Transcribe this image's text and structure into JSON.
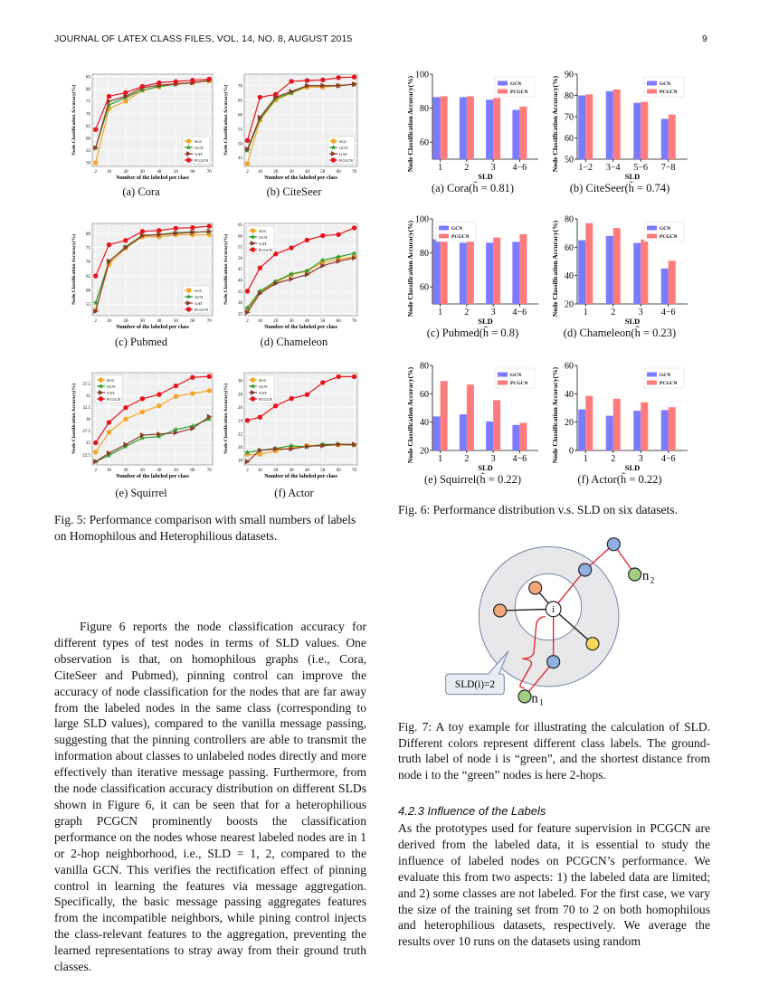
{
  "header": {
    "title": "JOURNAL OF LATEX CLASS FILES, VOL. 14, NO. 8, AUGUST 2015",
    "page": "9"
  },
  "figure5": {
    "caption": "Fig. 5: Performance comparison with small numbers of labels on Homophilous and Heterophilious datasets."
  },
  "figure6": {
    "caption": "Fig. 6: Performance distribution v.s. SLD on six datasets."
  },
  "figure7": {
    "caption": "Fig. 7: A toy example for illustrating the calculation of SLD. Different colors represent different class labels. The ground-truth label of node i is “green”, and the shortest distance from node i to the “green” nodes is here 2-hops.",
    "center_label": "i",
    "n1_label": "n",
    "n1_sub": "1",
    "n2_label": "n",
    "n2_sub": "2",
    "callout": "SLD(i)=2",
    "colors": {
      "orange": "#f4a77a",
      "blue": "#8fb0e0",
      "green": "#9fd07f",
      "yellow": "#f8d85a",
      "ring": "#e8e8ea",
      "edge_red": "#e0242a"
    }
  },
  "body": {
    "left_paragraph": "Figure 6 reports the node classification accuracy for different types of test nodes in terms of SLD values. One observation is that, on homophilous graphs (i.e., Cora, CiteSeer and Pubmed), pinning control can improve the accuracy of node classification for the nodes that are far away from the labeled nodes in the same class (corresponding to large SLD values), compared to the vanilla message passing, suggesting that the pinning controllers are able to transmit the information about classes to unlabeled nodes directly and more effectively than iterative message passing. Furthermore, from the node classification accuracy distribution on different SLDs shown in Figure 6, it can be seen that for a heterophilious graph PCGCN prominently boosts the classification performance on the nodes whose nearest labeled nodes are in 1 or 2-hop neighborhood, i.e., SLD = 1, 2, compared to the vanilla GCN. This verifies the rectification effect of pinning control in learning the features via message aggregation. Specifically, the basic message passing aggregates features from the incompatible neighbors, while pining control injects the class-relevant features to the aggregation, preventing the learned representations to stray away from their ground truth classes.",
    "section_heading": "4.2.3   Influence of the Labels",
    "right_paragraph": "As the prototypes used for feature supervision in PCGCN are derived from the labeled data, it is essential to study the influence of labeled nodes on PCGCN’s performance. We evaluate this from two aspects: 1) the labeled data are limited; and 2) some classes are not labeled. For the first case, we vary the size of the training set from 70 to 2 on both homophilous and heterophilious datasets, respectively. We average the results over 10 runs on the datasets using random"
  },
  "chart_data": [
    {
      "type": "line",
      "caption": "(a) Cora",
      "xlabel": "Number of the labeled per class",
      "ylabel": "Node Classification Accuracy(%)",
      "x": [
        2,
        10,
        20,
        30,
        40,
        50,
        60,
        70
      ],
      "ylim": [
        48.5,
        86
      ],
      "yticks": [
        50,
        55,
        60,
        65,
        70,
        75,
        80,
        85
      ],
      "legend": "bottom-right",
      "grid": true,
      "series": [
        {
          "name": "SGC",
          "color": "#f5a623",
          "marker": "circle",
          "values": [
            50,
            72,
            75,
            79.5,
            80.8,
            82,
            82.5,
            83.3
          ]
        },
        {
          "name": "GCN",
          "color": "#2a9d2a",
          "marker": "star",
          "values": [
            56,
            73.5,
            76.5,
            79.5,
            81,
            82,
            82.5,
            83.5
          ]
        },
        {
          "name": "GAT",
          "color": "#8b3a2a",
          "marker": "triangle",
          "values": [
            56,
            75,
            77,
            80.5,
            81.5,
            82,
            82.5,
            83.5
          ]
        },
        {
          "name": "PCGCN",
          "color": "#e8141c",
          "marker": "circle",
          "values": [
            63.5,
            77,
            78.5,
            81,
            82.5,
            83,
            83.5,
            84
          ]
        }
      ]
    },
    {
      "type": "line",
      "caption": "(b) CiteSeer",
      "xlabel": "Number of the labeled per class",
      "ylabel": "Node Classification Accuracy(%)",
      "x": [
        2,
        10,
        20,
        30,
        40,
        50,
        60,
        70
      ],
      "ylim": [
        42,
        74
      ],
      "yticks": [
        45,
        50,
        55,
        60,
        65,
        70
      ],
      "legend": "bottom-right",
      "grid": true,
      "series": [
        {
          "name": "SGC",
          "color": "#f5a623",
          "marker": "circle",
          "values": [
            43,
            58,
            65,
            67.5,
            69.5,
            69.5,
            70,
            70.5
          ]
        },
        {
          "name": "GCN",
          "color": "#2a9d2a",
          "marker": "star",
          "values": [
            47.5,
            58.5,
            65.5,
            67.5,
            70,
            70,
            70,
            70.5
          ]
        },
        {
          "name": "GAT",
          "color": "#8b3a2a",
          "marker": "triangle",
          "values": [
            48,
            59,
            66,
            68,
            70,
            70,
            70,
            70.5
          ]
        },
        {
          "name": "PCGCN",
          "color": "#e8141c",
          "marker": "circle",
          "values": [
            51,
            66,
            67,
            71.5,
            71.8,
            72,
            72.8,
            73
          ]
        }
      ]
    },
    {
      "type": "line",
      "caption": "(c) Pubmed",
      "xlabel": "Number of the labeled per class",
      "ylabel": "Node Classification Accuracy(%)",
      "x": [
        2,
        10,
        20,
        30,
        40,
        50,
        60,
        70
      ],
      "ylim": [
        51,
        83.5
      ],
      "yticks": [
        55,
        60,
        65,
        70,
        75,
        80
      ],
      "legend": "bottom-right",
      "grid": true,
      "series": [
        {
          "name": "SGC",
          "color": "#f5a623",
          "marker": "circle",
          "values": [
            53,
            69,
            74.8,
            78.8,
            78.8,
            79.5,
            79.5,
            79.5
          ]
        },
        {
          "name": "GCN",
          "color": "#2a9d2a",
          "marker": "star",
          "values": [
            55.5,
            70,
            75.3,
            79.3,
            79.6,
            80.2,
            80.5,
            80.5
          ]
        },
        {
          "name": "GAT",
          "color": "#8b3a2a",
          "marker": "triangle",
          "values": [
            52.5,
            70.2,
            75,
            79.2,
            79.5,
            80,
            80.3,
            80.7
          ]
        },
        {
          "name": "PCGCN",
          "color": "#e8141c",
          "marker": "circle",
          "values": [
            65,
            76,
            77.5,
            80.7,
            81,
            81.8,
            82,
            82.5
          ]
        }
      ]
    },
    {
      "type": "line",
      "caption": "(d) Chameleon",
      "xlabel": "Number of the labeled per class",
      "ylabel": "Node Classification Accuracy(%)",
      "x": [
        2,
        10,
        20,
        30,
        40,
        50,
        60,
        70
      ],
      "ylim": [
        24,
        65.5
      ],
      "yticks": [
        25,
        30,
        35,
        40,
        45,
        50,
        55,
        60,
        65
      ],
      "legend": "top-left",
      "grid": true,
      "series": [
        {
          "name": "SGC",
          "color": "#f5a623",
          "marker": "circle",
          "values": [
            26.5,
            34.5,
            39,
            42.5,
            44,
            48,
            49.5,
            50.5
          ]
        },
        {
          "name": "GCN",
          "color": "#2a9d2a",
          "marker": "star",
          "values": [
            27.5,
            35,
            39.5,
            42.8,
            44.2,
            49,
            50.5,
            52
          ]
        },
        {
          "name": "GAT",
          "color": "#8b3a2a",
          "marker": "triangle",
          "values": [
            25.5,
            34,
            38.5,
            40.5,
            42.5,
            46.5,
            48.5,
            50
          ]
        },
        {
          "name": "PCGCN",
          "color": "#e8141c",
          "marker": "circle",
          "values": [
            35,
            45.5,
            51.8,
            54.5,
            58,
            60,
            60.5,
            63.5
          ]
        }
      ]
    },
    {
      "type": "line",
      "caption": "(e) Squirrel",
      "xlabel": "Number of the labeled per class",
      "ylabel": "Node Classification Accuracy(%)",
      "x": [
        2,
        10,
        20,
        30,
        40,
        50,
        60,
        70
      ],
      "ylim": [
        20.3,
        39.8
      ],
      "yticks": [
        22.5,
        25.0,
        27.5,
        30.0,
        32.5,
        35.0,
        37.5
      ],
      "legend": "top-left",
      "grid": true,
      "series": [
        {
          "name": "SGC",
          "color": "#f5a623",
          "marker": "circle",
          "values": [
            23,
            27.2,
            30,
            31.5,
            32.8,
            34.8,
            35.4,
            36
          ]
        },
        {
          "name": "GCN",
          "color": "#2a9d2a",
          "marker": "star",
          "values": [
            21,
            22.3,
            24.2,
            26,
            26.3,
            27.8,
            28.5,
            30
          ]
        },
        {
          "name": "GAT",
          "color": "#8b3a2a",
          "marker": "triangle",
          "values": [
            21,
            22.8,
            24.6,
            26.6,
            26.8,
            27.1,
            28,
            30.5
          ]
        },
        {
          "name": "PCGCN",
          "color": "#e8141c",
          "marker": "circle",
          "values": [
            25,
            29.3,
            32.4,
            34.3,
            35.2,
            37,
            38.8,
            39
          ]
        }
      ]
    },
    {
      "type": "line",
      "caption": "(f) Actor",
      "xlabel": "Number of the labeled per class",
      "ylabel": "Node Classification Accuracy(%)",
      "x": [
        2,
        10,
        20,
        30,
        40,
        50,
        60,
        70
      ],
      "ylim": [
        17.3,
        31.2
      ],
      "yticks": [
        18,
        20,
        22,
        24,
        26,
        28,
        30
      ],
      "legend": "top-left",
      "grid": true,
      "series": [
        {
          "name": "SGC",
          "color": "#f5a623",
          "marker": "circle",
          "values": [
            18.9,
            18.9,
            19.4,
            19.9,
            20.2,
            20.3,
            20.3,
            20.3
          ]
        },
        {
          "name": "GCN",
          "color": "#2a9d2a",
          "marker": "star",
          "values": [
            19.2,
            19.5,
            19.8,
            20.2,
            20,
            20.4,
            20.4,
            20.3
          ]
        },
        {
          "name": "GAT",
          "color": "#8b3a2a",
          "marker": "triangle",
          "values": [
            17.8,
            19.5,
            19.7,
            19.7,
            20.1,
            20.2,
            20.4,
            20.4
          ]
        },
        {
          "name": "PCGCN",
          "color": "#e8141c",
          "marker": "circle",
          "values": [
            24,
            24.5,
            26.2,
            27.3,
            27.9,
            29.7,
            30.6,
            30.6
          ]
        }
      ]
    },
    {
      "type": "bar",
      "caption": "(a) Cora(h̃ = 0.81)",
      "xlabel": "SLD",
      "ylabel": "Node Classification Accuracy(%)",
      "categories": [
        "1",
        "2",
        "3",
        "4-6"
      ],
      "ylim": [
        50,
        100
      ],
      "yticks": [
        60,
        80,
        100
      ],
      "legend": "top-right",
      "series": [
        {
          "name": "GCN",
          "color": "#7b7bff",
          "values": [
            86.5,
            86.5,
            85,
            79
          ]
        },
        {
          "name": "PCGCN",
          "color": "#ff7b7b",
          "values": [
            87,
            87,
            86,
            81
          ]
        }
      ]
    },
    {
      "type": "bar",
      "caption": "(b) CiteSeer(h̃ = 0.74)",
      "xlabel": "SLD",
      "ylabel": "Node Classification Accuracy(%)",
      "categories": [
        "1-2",
        "3-4",
        "5-6",
        "7-8"
      ],
      "ylim": [
        50,
        90
      ],
      "yticks": [
        50,
        60,
        70,
        80,
        90
      ],
      "legend": "top-right",
      "series": [
        {
          "name": "GCN",
          "color": "#7b7bff",
          "values": [
            80,
            82,
            76.5,
            69
          ]
        },
        {
          "name": "PCGCN",
          "color": "#ff7b7b",
          "values": [
            80.5,
            82.8,
            77,
            71
          ]
        }
      ]
    },
    {
      "type": "bar",
      "caption": "(c) Pubmed(h̃ = 0.8)",
      "xlabel": "SLD",
      "ylabel": "Node Classification Accuracy(%)",
      "categories": [
        "1",
        "2",
        "3",
        "4-6"
      ],
      "ylim": [
        50,
        100
      ],
      "yticks": [
        60,
        80,
        100
      ],
      "legend": "top-left",
      "series": [
        {
          "name": "GCN",
          "color": "#7b7bff",
          "values": [
            88,
            86,
            86,
            86.5
          ]
        },
        {
          "name": "PCGCN",
          "color": "#ff7b7b",
          "values": [
            89,
            88.5,
            89,
            91
          ]
        }
      ]
    },
    {
      "type": "bar",
      "caption": "(d) Chameleon(h̃ = 0.23)",
      "xlabel": "SLD",
      "ylabel": "Node Classification Accuracy(%)",
      "categories": [
        "1",
        "2",
        "3",
        "4-6"
      ],
      "ylim": [
        20,
        80
      ],
      "yticks": [
        20,
        40,
        60,
        80
      ],
      "legend": "top-right",
      "series": [
        {
          "name": "GCN",
          "color": "#7b7bff",
          "values": [
            65,
            68,
            63,
            45
          ]
        },
        {
          "name": "PCGCN",
          "color": "#ff7b7b",
          "values": [
            77,
            73.5,
            65.5,
            50.5
          ]
        }
      ]
    },
    {
      "type": "bar",
      "caption": "(e) Squirrel(h̃ = 0.22)",
      "xlabel": "SLD",
      "ylabel": "Node Classification Accuracy(%)",
      "categories": [
        "1",
        "2",
        "3",
        "4-6"
      ],
      "ylim": [
        20,
        80
      ],
      "yticks": [
        20,
        40,
        60,
        80
      ],
      "legend": "top-right",
      "series": [
        {
          "name": "GCN",
          "color": "#7b7bff",
          "values": [
            44,
            45.5,
            40.5,
            38
          ]
        },
        {
          "name": "PCGCN",
          "color": "#ff7b7b",
          "values": [
            69,
            66.5,
            55.5,
            39.5
          ]
        }
      ]
    },
    {
      "type": "bar",
      "caption": "(f) Actor(h̃ = 0.22)",
      "xlabel": "SLD",
      "ylabel": "Node Classification Accuracy(%)",
      "categories": [
        "1",
        "2",
        "3",
        "4-6"
      ],
      "ylim": [
        0,
        60
      ],
      "yticks": [
        0,
        20,
        40,
        60
      ],
      "legend": "top-right",
      "series": [
        {
          "name": "GCN",
          "color": "#7b7bff",
          "values": [
            29,
            24.5,
            28,
            28.5
          ]
        },
        {
          "name": "PCGCN",
          "color": "#ff7b7b",
          "values": [
            38.5,
            36.5,
            34,
            30.5
          ]
        }
      ]
    }
  ]
}
